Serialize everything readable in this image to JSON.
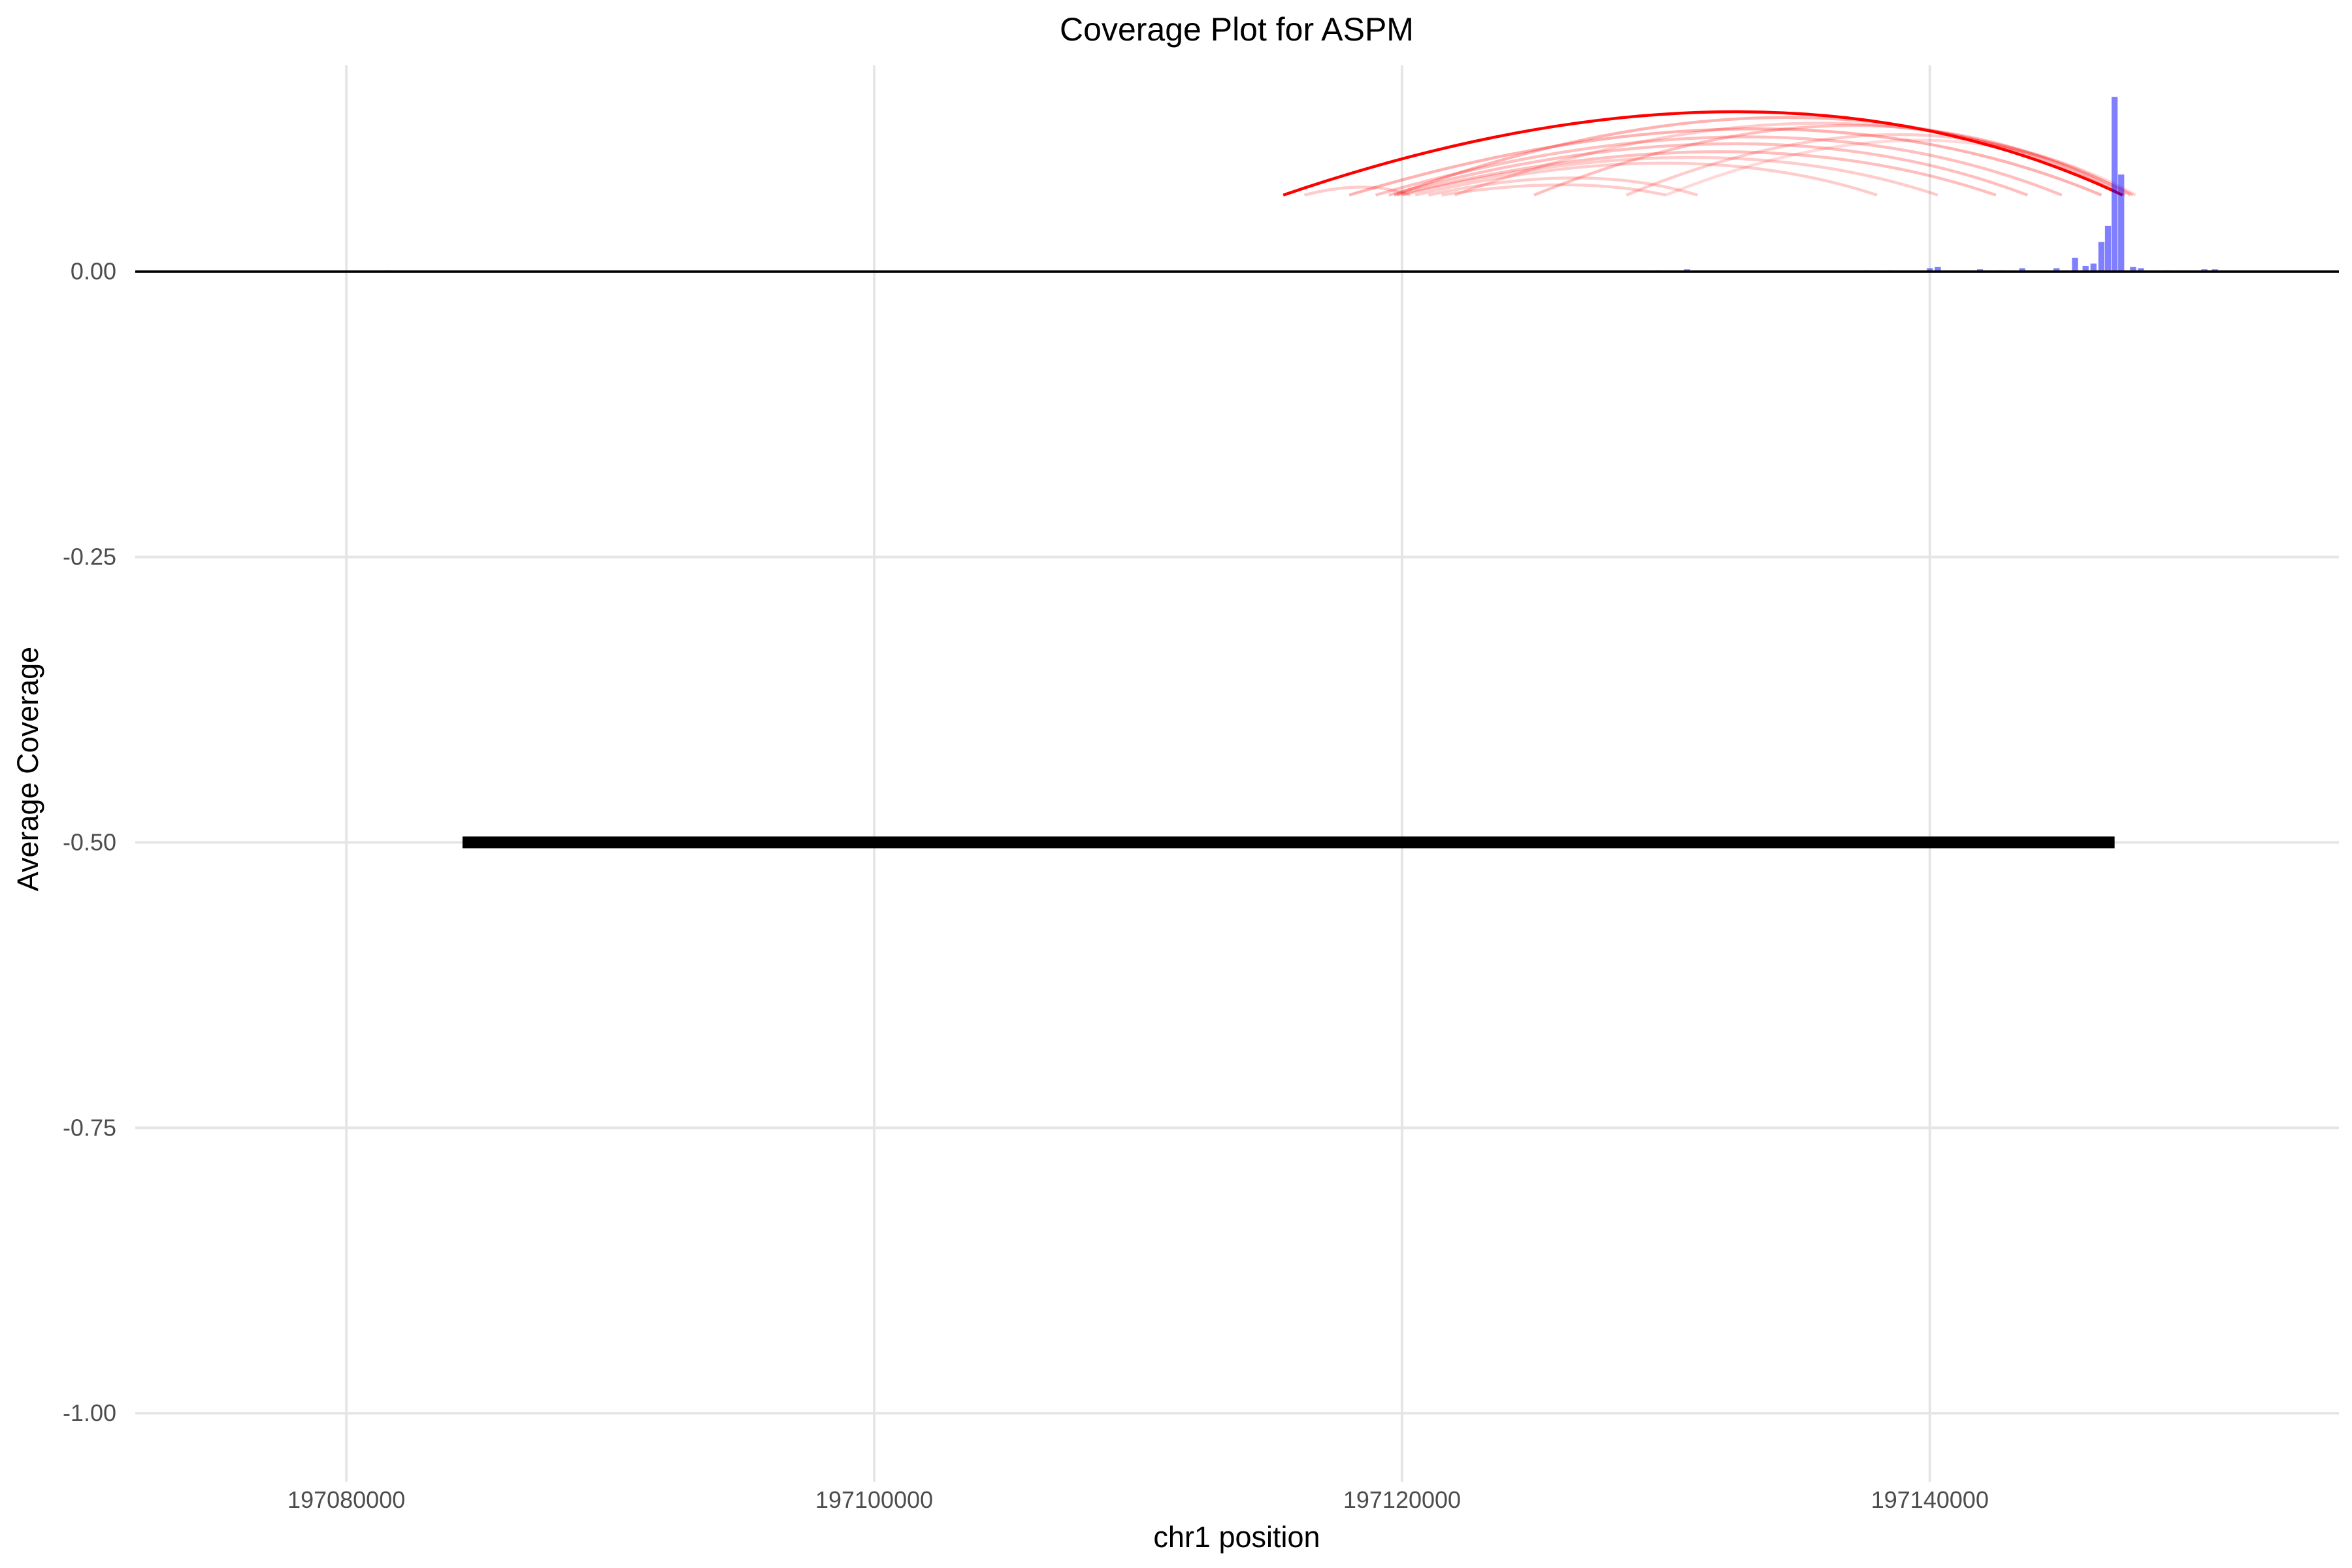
{
  "chart_data": {
    "type": "bar",
    "title": "Coverage Plot for ASPM",
    "xlabel": "chr1 position",
    "ylabel": "Average Coverage",
    "xlim": [
      197072000,
      197155500
    ],
    "ylim": [
      -1.06,
      0.215
    ],
    "x_ticks": [
      197080000,
      197100000,
      197120000,
      197140000
    ],
    "x_tick_labels": [
      "197080000",
      "197100000",
      "197120000",
      "197140000"
    ],
    "y_ticks": [
      0,
      -0.25,
      -0.5,
      -0.75,
      -1.0
    ],
    "y_tick_labels": [
      "0.00",
      "-0.25",
      "-0.50",
      "-0.75",
      "-1.00"
    ],
    "grid": true,
    "zero_line": true,
    "coverage_series": {
      "color": "#0000ff",
      "opacity": 0.5,
      "bin_width": 230,
      "points": [
        {
          "x": 197081600,
          "y": 0.001
        },
        {
          "x": 197120100,
          "y": 0.001
        },
        {
          "x": 197129700,
          "y": 0.001
        },
        {
          "x": 197130800,
          "y": 0.002
        },
        {
          "x": 197137600,
          "y": 0.001
        },
        {
          "x": 197138500,
          "y": 0.001
        },
        {
          "x": 197140000,
          "y": 0.003
        },
        {
          "x": 197140300,
          "y": 0.004
        },
        {
          "x": 197141900,
          "y": 0.002
        },
        {
          "x": 197142700,
          "y": 0.001
        },
        {
          "x": 197143500,
          "y": 0.003
        },
        {
          "x": 197144800,
          "y": 0.003
        },
        {
          "x": 197145500,
          "y": 0.012
        },
        {
          "x": 197145900,
          "y": 0.005
        },
        {
          "x": 197146200,
          "y": 0.007
        },
        {
          "x": 197146500,
          "y": 0.026
        },
        {
          "x": 197146750,
          "y": 0.04
        },
        {
          "x": 197147000,
          "y": 0.153
        },
        {
          "x": 197147250,
          "y": 0.085
        },
        {
          "x": 197147700,
          "y": 0.004
        },
        {
          "x": 197148000,
          "y": 0.003
        },
        {
          "x": 197149000,
          "y": 0.001
        },
        {
          "x": 197150400,
          "y": 0.002
        },
        {
          "x": 197150800,
          "y": 0.002
        }
      ]
    },
    "junction_arcs": {
      "color": "#ff0000",
      "arcs": [
        {
          "start": 197115500,
          "end": 197147300,
          "peak": 0.14,
          "opacity": 1.0
        },
        {
          "start": 197119700,
          "end": 197147300,
          "peak": 0.135,
          "opacity": 0.3
        },
        {
          "start": 197122000,
          "end": 197147700,
          "peak": 0.13,
          "opacity": 0.2
        },
        {
          "start": 197125000,
          "end": 197147400,
          "peak": 0.128,
          "opacity": 0.25
        },
        {
          "start": 197128500,
          "end": 197147600,
          "peak": 0.12,
          "opacity": 0.2
        },
        {
          "start": 197130000,
          "end": 197147800,
          "peak": 0.115,
          "opacity": 0.15
        },
        {
          "start": 197118000,
          "end": 197146500,
          "peak": 0.125,
          "opacity": 0.3
        },
        {
          "start": 197119000,
          "end": 197145000,
          "peak": 0.118,
          "opacity": 0.25
        },
        {
          "start": 197119500,
          "end": 197143700,
          "peak": 0.112,
          "opacity": 0.25
        },
        {
          "start": 197119800,
          "end": 197142500,
          "peak": 0.105,
          "opacity": 0.25
        },
        {
          "start": 197120000,
          "end": 197140300,
          "peak": 0.1,
          "opacity": 0.2
        },
        {
          "start": 197120500,
          "end": 197138000,
          "peak": 0.095,
          "opacity": 0.2
        },
        {
          "start": 197121000,
          "end": 197131200,
          "peak": 0.082,
          "opacity": 0.2
        },
        {
          "start": 197121500,
          "end": 197130000,
          "peak": 0.076,
          "opacity": 0.2
        },
        {
          "start": 197116300,
          "end": 197120300,
          "peak": 0.074,
          "opacity": 0.2
        }
      ]
    },
    "gene_model": {
      "name": "ASPM",
      "start": 197084400,
      "end": 197147000,
      "y": -0.5,
      "color": "#000000"
    }
  }
}
